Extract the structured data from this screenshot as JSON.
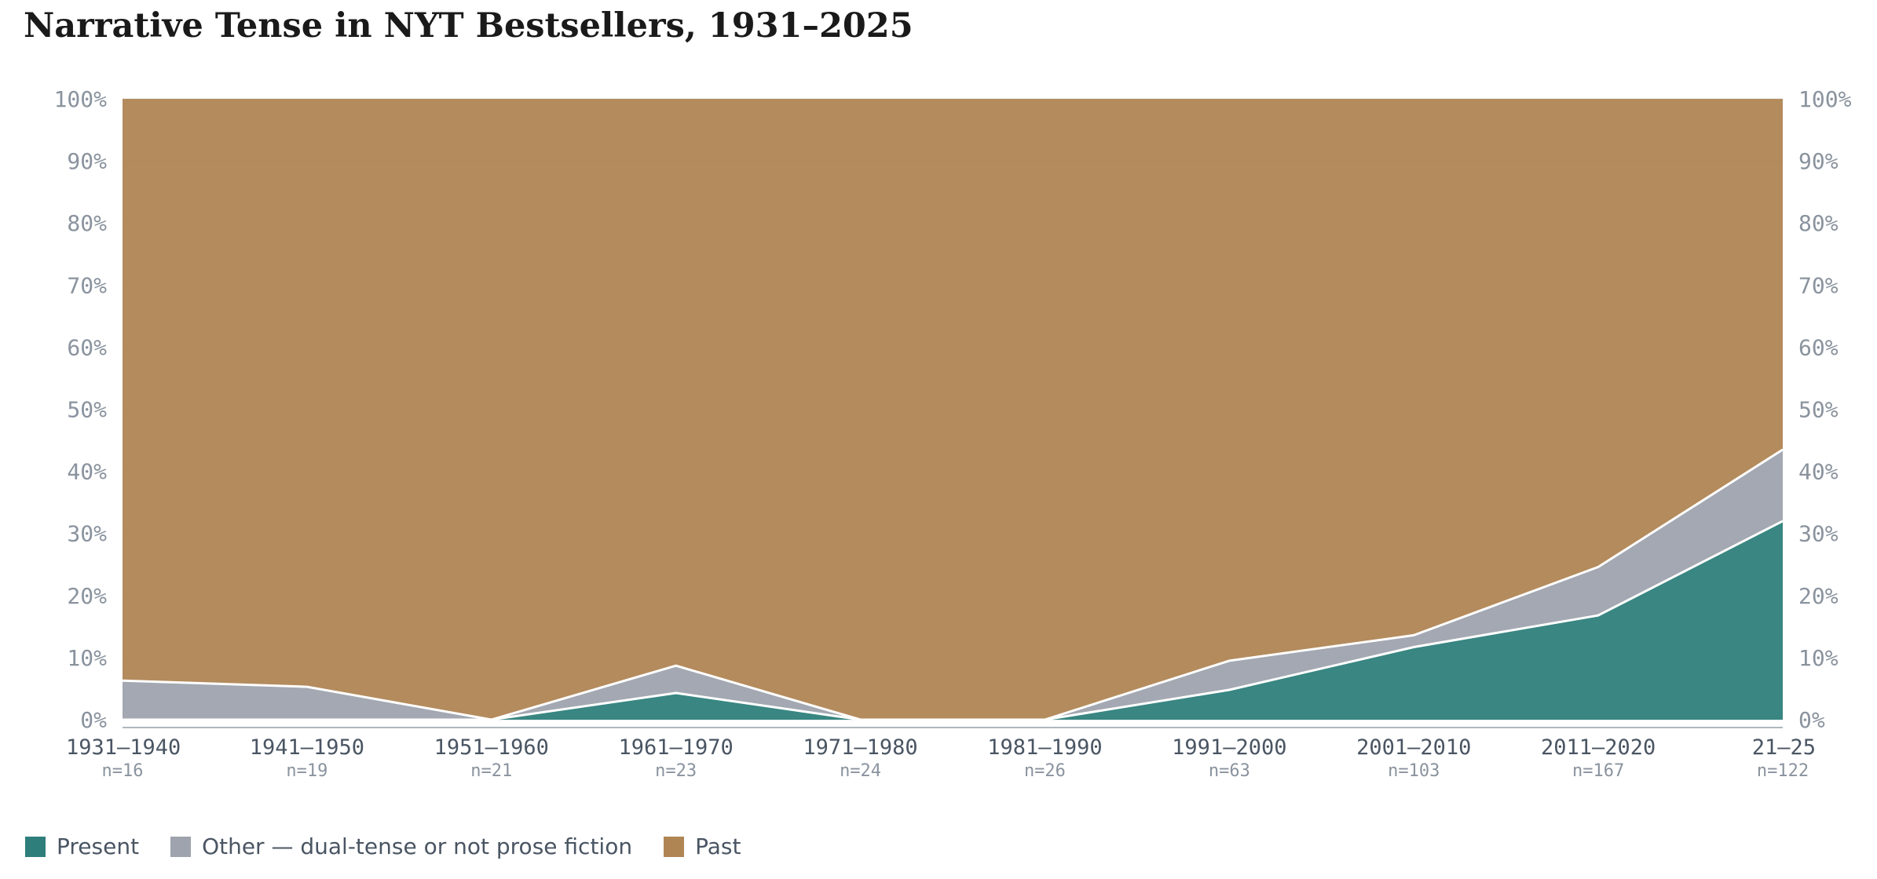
{
  "title": "Narrative Tense in NYT Bestsellers, 1931–2025",
  "colors": {
    "present": "#2e7f7b",
    "other": "#9ea3ae",
    "past": "#b08554",
    "grid": "#d9dde2",
    "baseline": "#aeb8c0"
  },
  "legend": [
    {
      "label": "Present",
      "color": "#2e7f7b",
      "icon": "square-swatch"
    },
    {
      "label": "Other — dual-tense or not prose fiction",
      "color": "#9ea3ae",
      "icon": "square-swatch"
    },
    {
      "label": "Past",
      "color": "#b08554",
      "icon": "square-swatch"
    }
  ],
  "chart_data": {
    "type": "area",
    "stacked": true,
    "normalized": true,
    "title": "Narrative Tense in NYT Bestsellers, 1931–2025",
    "categories": [
      "1931–1940",
      "1941–1950",
      "1951–1960",
      "1961–1970",
      "1971–1980",
      "1981–1990",
      "1991–2000",
      "2001–2010",
      "2011–2020",
      "21–25"
    ],
    "n_labels": [
      "n=16",
      "n=19",
      "n=21",
      "n=23",
      "n=24",
      "n=26",
      "n=63",
      "n=103",
      "n=167",
      "n=122"
    ],
    "series": [
      {
        "name": "Present",
        "values": [
          0,
          0,
          0,
          4.3,
          0,
          0,
          4.8,
          11.7,
          16.8,
          32.0
        ]
      },
      {
        "name": "Other — dual-tense or not prose fiction",
        "values": [
          6.3,
          5.3,
          0,
          4.4,
          0,
          0,
          4.7,
          1.9,
          7.8,
          11.5
        ]
      },
      {
        "name": "Past",
        "values": [
          93.7,
          94.7,
          100,
          91.3,
          100,
          100,
          90.5,
          86.4,
          75.4,
          56.5
        ]
      }
    ],
    "ylim": [
      0,
      100
    ],
    "yticks": [
      "0%",
      "10%",
      "20%",
      "30%",
      "40%",
      "50%",
      "60%",
      "70%",
      "80%",
      "90%",
      "100%"
    ],
    "grid": true,
    "y_axis_both_sides": true,
    "legend_position": "bottom-left"
  }
}
